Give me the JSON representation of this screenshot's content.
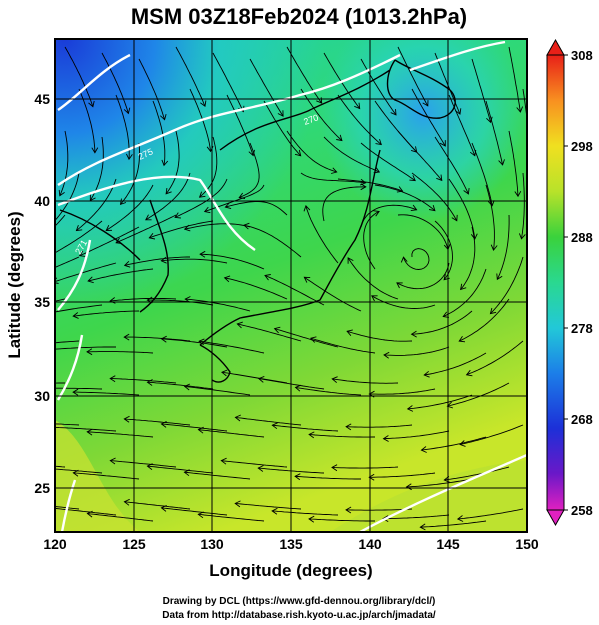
{
  "title": "MSM 03Z18Feb2024 (1013.2hPa)",
  "x_axis": {
    "label": "Longitude (degrees)",
    "min": 120,
    "max": 150,
    "ticks": [
      "120",
      "125",
      "130",
      "135",
      "140",
      "145",
      "150"
    ]
  },
  "y_axis": {
    "label": "Latitude  (degrees)",
    "min": 22.4,
    "max": 47.6,
    "ticks": [
      "25",
      "30",
      "35",
      "40",
      "45"
    ]
  },
  "colorbar": {
    "min": 258,
    "max": 308,
    "ticks": [
      "308",
      "298",
      "288",
      "278",
      "268",
      "258"
    ]
  },
  "credits": {
    "line1": "Drawing by DCL (https://www.gfd-dennou.org/library/dcl/)",
    "line2": "Data from http://database.rish.kyoto-u.ac.jp/arch/jmadata/"
  },
  "contour_labels": [
    "275",
    "270",
    "271"
  ]
}
